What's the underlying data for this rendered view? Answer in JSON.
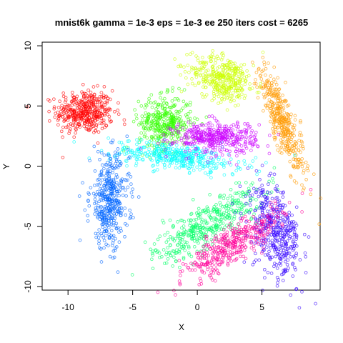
{
  "chart_data": {
    "type": "scatter",
    "title": "mnist6k gamma = 1e-3 eps = 1e-3 ee 250 iters cost = 6265",
    "xlabel": "X",
    "ylabel": "Y",
    "xlim": [
      -12.0,
      9.5
    ],
    "ylim": [
      -10.3,
      10.3
    ],
    "xticks": [
      -10,
      -5,
      0,
      5
    ],
    "xtick_labels": [
      "-10",
      "-5",
      "0",
      "5"
    ],
    "yticks": [
      -10,
      -5,
      0,
      5,
      10
    ],
    "ytick_labels": [
      "-10",
      "-5",
      "0",
      "5",
      "10"
    ],
    "grid": false,
    "marker": "open circle",
    "series": [
      {
        "color": "#FF0000",
        "clusters": [
          {
            "cx": -8.7,
            "cy": 4.5,
            "sx": 1.1,
            "sy": 0.9,
            "rot": 0,
            "n": 420
          }
        ]
      },
      {
        "color": "#FF9900",
        "clusters": [
          {
            "cx": 6.6,
            "cy": 3.6,
            "sx": 0.45,
            "sy": 2.3,
            "rot": 0.35,
            "n": 400
          }
        ]
      },
      {
        "color": "#CCFF00",
        "clusters": [
          {
            "cx": 2.0,
            "cy": 7.3,
            "sx": 1.3,
            "sy": 0.9,
            "rot": -0.35,
            "n": 400
          }
        ]
      },
      {
        "color": "#33FF00",
        "clusters": [
          {
            "cx": -2.5,
            "cy": 3.6,
            "sx": 1.0,
            "sy": 1.1,
            "rot": 0,
            "n": 380
          }
        ]
      },
      {
        "color": "#00FF66",
        "clusters": [
          {
            "cx": 0.8,
            "cy": -4.8,
            "sx": 2.4,
            "sy": 0.8,
            "rot": 0.6,
            "n": 420
          }
        ]
      },
      {
        "color": "#00FFFF",
        "clusters": [
          {
            "cx": -1.6,
            "cy": 0.8,
            "sx": 2.5,
            "sy": 0.55,
            "rot": -0.12,
            "n": 420
          }
        ]
      },
      {
        "color": "#0066FF",
        "clusters": [
          {
            "cx": -6.8,
            "cy": -2.9,
            "sx": 0.75,
            "sy": 1.9,
            "rot": 0,
            "n": 420
          }
        ]
      },
      {
        "color": "#3300FF",
        "clusters": [
          {
            "cx": 6.1,
            "cy": -5.5,
            "sx": 0.9,
            "sy": 1.9,
            "rot": 0.25,
            "n": 420
          }
        ]
      },
      {
        "color": "#CC00FF",
        "clusters": [
          {
            "cx": 1.4,
            "cy": 2.4,
            "sx": 1.6,
            "sy": 0.65,
            "rot": 0,
            "n": 420
          }
        ]
      },
      {
        "color": "#FF0099",
        "clusters": [
          {
            "cx": 2.8,
            "cy": -6.5,
            "sx": 2.3,
            "sy": 0.65,
            "rot": 0.62,
            "n": 420
          }
        ]
      }
    ]
  }
}
